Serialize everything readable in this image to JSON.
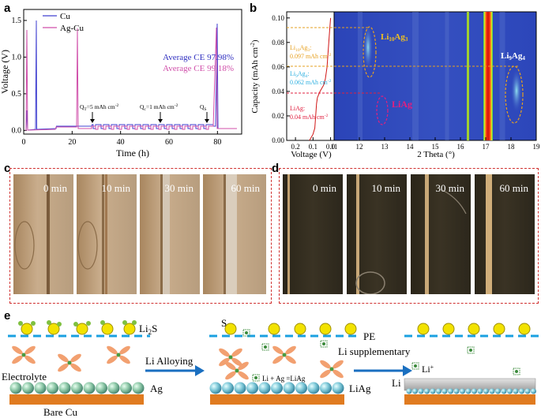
{
  "panel_labels": {
    "a": "a",
    "b": "b",
    "c": "c",
    "d": "d",
    "e": "e"
  },
  "chart_data": [
    {
      "type": "line",
      "panel": "a",
      "xlabel": "Time (h)",
      "ylabel": "Voltage (V)",
      "xlim": [
        0,
        90
      ],
      "ylim": [
        -0.05,
        1.65
      ],
      "x_ticks": [
        0,
        20,
        40,
        60,
        80
      ],
      "y_ticks": [
        0.0,
        0.5,
        1.0,
        1.5
      ],
      "x_tick_labels": [
        "0",
        "20",
        "40",
        "60",
        "80"
      ],
      "y_tick_labels": [
        "0.0",
        "0.5",
        "1.0",
        "1.5"
      ],
      "series": [
        {
          "name": "Cu",
          "color": "#4040d0"
        },
        {
          "name": "Ag-Cu",
          "color": "#d04faa"
        }
      ],
      "annotations": {
        "ce_cu": "Average CE 97.98%",
        "ce_agcu": "Average CE 99.18%",
        "qt_prefix": "Q",
        "qt_sub": "T",
        "qt_rest": "=5 mAh cm",
        "qc_prefix": "Q",
        "qc_sub": "c",
        "qc_rest": "=1 mAh cm",
        "sup": "-2",
        "qs_prefix": "Q",
        "qs_sub": "S"
      }
    },
    {
      "type": "heatmap",
      "panel": "b",
      "xlabel_left": "Voltage (V)",
      "xlabel_right": "2 Theta (°)",
      "ylabel": "Capacity (mAh cm",
      "ylabel_sup": "-2",
      "ylabel_end": ")",
      "ylim": [
        0,
        0.105
      ],
      "y_ticks": [
        0,
        0.02,
        0.04,
        0.06,
        0.08,
        0.1
      ],
      "y_tick_labels": [
        "0.00",
        "0.02",
        "0.04",
        "0.06",
        "0.08",
        "0.10"
      ],
      "x_left_ticks": [
        0.2,
        0.1,
        0.0
      ],
      "x_left_tick_labels": [
        "0.2",
        "0.1",
        "0.0"
      ],
      "x_right_ticks": [
        11,
        12,
        13,
        14,
        15,
        16,
        17,
        18,
        19
      ],
      "x_right_tick_labels": [
        "11",
        "12",
        "13",
        "14",
        "15",
        "16",
        "17",
        "18",
        "19"
      ],
      "voltage_curve": {
        "capacity": [
          0,
          0.005,
          0.01,
          0.02,
          0.03,
          0.035,
          0.04,
          0.045,
          0.05,
          0.06,
          0.07,
          0.08,
          0.09,
          0.1
        ],
        "voltage": [
          0.12,
          0.1,
          0.09,
          0.085,
          0.08,
          0.075,
          0.06,
          0.04,
          0.03,
          0.02,
          0.015,
          0.01,
          0.005,
          0.0
        ]
      },
      "phases": [
        {
          "name_main": "Li",
          "name_sub1": "10",
          "name_mid": "Ag",
          "name_sub2": "3",
          "capacity_text": "0.097 mAh cm",
          "capacity_sup": "-2",
          "color": "#e6a020",
          "capacity": 0.097,
          "two_theta": 12.4
        },
        {
          "name_main": "Li",
          "name_sub1": "9",
          "name_mid": "Ag",
          "name_sub2": "4",
          "capacity_text": "0.062 mAh cm",
          "capacity_sup": "-2",
          "color": "#2fb0e0",
          "capacity": 0.062,
          "two_theta": 18.1
        },
        {
          "name_main": "LiAg",
          "name_sub1": "",
          "name_mid": "",
          "name_sub2": "",
          "capacity_text": "0.04 mAh cm",
          "capacity_sup": "-2",
          "color": "#e02040",
          "capacity": 0.04,
          "two_theta": 12.9
        }
      ],
      "peak_labels": {
        "li10ag3": {
          "m": "Li",
          "s1": "10",
          "mid": "Ag",
          "s2": "3"
        },
        "li9ag4": {
          "m": "Li",
          "s1": "9",
          "mid": "Ag",
          "s2": "4"
        },
        "liag": "LiAg"
      }
    }
  ],
  "panel_c": {
    "times": [
      "0 min",
      "10 min",
      "30 min",
      "60 min"
    ]
  },
  "panel_d": {
    "times": [
      "0 min",
      "10 min",
      "30 min",
      "60 min"
    ]
  },
  "panel_e": {
    "li2s": "Li",
    "li2s_sub": "2",
    "li2s_end": "S",
    "electrolyte": "Electrolyte",
    "ag": "Ag",
    "bare_cu": "Bare Cu",
    "arrow1": "Li Alloying",
    "s_label": "S",
    "pe": "PE",
    "li_supplementary": "Li supplementary",
    "reaction": "Li + Ag =LiAg",
    "liag": "LiAg",
    "li_plus": "Li",
    "li_plus_sup": "+",
    "li": "Li"
  }
}
